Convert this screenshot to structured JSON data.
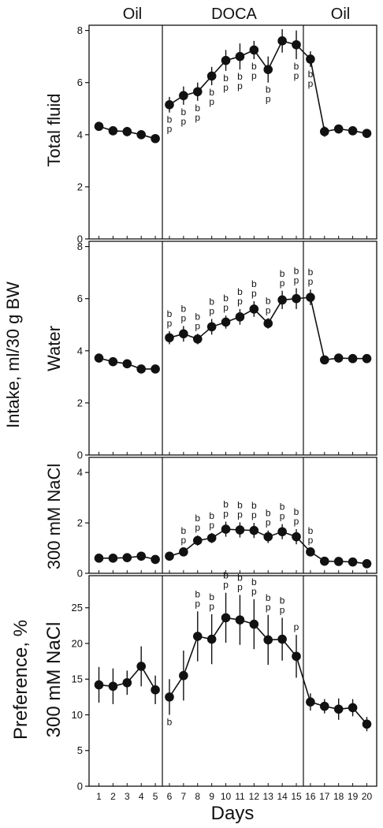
{
  "chart_data": {
    "type": "line",
    "x": [
      1,
      2,
      3,
      4,
      5,
      6,
      7,
      8,
      9,
      10,
      11,
      12,
      13,
      14,
      15,
      16,
      17,
      18,
      19,
      20
    ],
    "xlabel": "Days",
    "shared_ylabel": "Intake, ml/30 g BW",
    "groups": [
      {
        "label": "Oil",
        "from": 1,
        "to": 5
      },
      {
        "label": "DOCA",
        "from": 6,
        "to": 15
      },
      {
        "label": "Oil",
        "from": 16,
        "to": 20
      }
    ],
    "panels": [
      {
        "ylabel": "Total fluid",
        "ylim": [
          0,
          8.2
        ],
        "yticks": [
          0,
          2,
          4,
          6,
          8
        ],
        "values": [
          4.32,
          4.15,
          4.12,
          4.0,
          3.85,
          5.15,
          5.5,
          5.65,
          6.25,
          6.85,
          7.0,
          7.25,
          6.5,
          7.6,
          7.45,
          6.9,
          4.12,
          4.22,
          4.15,
          4.05
        ],
        "errors": [
          0.12,
          0.12,
          0.18,
          0.12,
          0.1,
          0.3,
          0.35,
          0.35,
          0.35,
          0.4,
          0.5,
          0.35,
          0.5,
          0.45,
          0.55,
          0.3,
          0.2,
          0.12,
          0.12,
          0.1
        ],
        "annotations": [
          "",
          "",
          "",
          "",
          "",
          "b p",
          "b p",
          "b p",
          "b p",
          "b p",
          "b p",
          "b p",
          "b p",
          "",
          "b p",
          "b p",
          "",
          "",
          "",
          ""
        ]
      },
      {
        "ylabel": "Water",
        "ylim": [
          0,
          8.2
        ],
        "yticks": [
          0,
          2,
          4,
          6,
          8
        ],
        "values": [
          3.72,
          3.58,
          3.5,
          3.3,
          3.3,
          4.5,
          4.65,
          4.45,
          4.92,
          5.1,
          5.3,
          5.6,
          5.05,
          5.95,
          6.0,
          6.05,
          3.65,
          3.72,
          3.7,
          3.7
        ],
        "errors": [
          0.15,
          0.1,
          0.1,
          0.1,
          0.1,
          0.25,
          0.3,
          0.2,
          0.3,
          0.25,
          0.3,
          0.3,
          0.2,
          0.35,
          0.4,
          0.3,
          0.15,
          0.1,
          0.1,
          0.1
        ],
        "annotations": [
          "",
          "",
          "",
          "",
          "",
          "b p",
          "b p",
          "b p",
          "b p",
          "b p",
          "b p",
          "b p",
          "b p",
          "b p",
          "b p",
          "b p",
          "",
          "",
          "",
          ""
        ]
      },
      {
        "ylabel": "300 mM NaCl",
        "ylim": [
          0,
          4.6
        ],
        "yticks": [
          0,
          2,
          4
        ],
        "values": [
          0.6,
          0.6,
          0.62,
          0.68,
          0.55,
          0.68,
          0.85,
          1.3,
          1.4,
          1.75,
          1.72,
          1.7,
          1.45,
          1.65,
          1.45,
          0.85,
          0.48,
          0.47,
          0.45,
          0.38
        ],
        "errors": [
          0.1,
          0.1,
          0.1,
          0.12,
          0.1,
          0.1,
          0.15,
          0.2,
          0.2,
          0.3,
          0.3,
          0.3,
          0.25,
          0.3,
          0.3,
          0.15,
          0.1,
          0.1,
          0.1,
          0.1
        ],
        "annotations": [
          "",
          "",
          "",
          "",
          "",
          "",
          "b p",
          "b p",
          "b p",
          "b p",
          "b p",
          "b p",
          "b p",
          "b p",
          "b p",
          "b p",
          "",
          "",
          "",
          ""
        ]
      },
      {
        "ylabel_lines": [
          "Preference, %",
          "300 mM NaCl"
        ],
        "ylim": [
          0,
          29.5
        ],
        "yticks": [
          0,
          5,
          10,
          15,
          20,
          25
        ],
        "values": [
          14.2,
          14.0,
          14.5,
          16.8,
          13.5,
          12.5,
          15.5,
          21.0,
          20.6,
          23.6,
          23.3,
          22.7,
          20.5,
          20.6,
          18.2,
          11.8,
          11.2,
          10.8,
          11.0,
          8.7
        ],
        "errors": [
          2.5,
          2.5,
          1.7,
          2.8,
          2.0,
          2.5,
          3.5,
          3.5,
          3.5,
          3.5,
          3.5,
          3.5,
          3.5,
          3.0,
          3.0,
          1.2,
          1.0,
          1.5,
          1.2,
          1.0
        ],
        "annotations": [
          "",
          "",
          "",
          "",
          "",
          "b",
          "",
          "b p",
          "b p",
          "b p",
          "b p",
          "b p",
          "b p",
          "b p",
          "p",
          "",
          "",
          "",
          "",
          ""
        ]
      }
    ]
  }
}
